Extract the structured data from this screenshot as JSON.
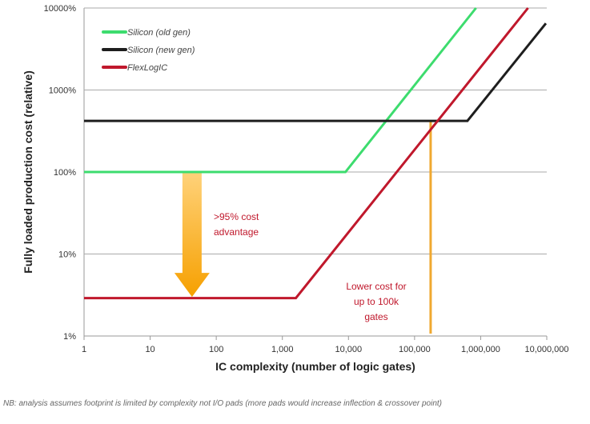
{
  "chart_data": {
    "type": "line",
    "xlabel": "IC complexity (number of logic gates)",
    "ylabel": "Fully loaded production cost (relative)",
    "x_scale": "log",
    "y_scale": "log",
    "xlim": [
      1,
      10000000
    ],
    "ylim": [
      1,
      10000
    ],
    "grid": true,
    "x_ticks": [
      1,
      10,
      100,
      1000,
      10000,
      100000,
      1000000,
      10000000
    ],
    "x_tick_labels": [
      "1",
      "10",
      "100",
      "1,000",
      "10,000",
      "100,000",
      "1,000,000",
      "10,000,000"
    ],
    "y_ticks": [
      1,
      10,
      100,
      1000,
      10000
    ],
    "y_tick_labels": [
      "1%",
      "10%",
      "100%",
      "1000%",
      "10000%"
    ],
    "legend_position": "top-left",
    "series": [
      {
        "name": "Silicon (old gen)",
        "color": "#3ddc6e",
        "points": [
          [
            1,
            100
          ],
          [
            9000,
            100
          ],
          [
            850000,
            10000
          ]
        ]
      },
      {
        "name": "Silicon (new gen)",
        "color": "#1e1e1e",
        "points": [
          [
            1,
            420
          ],
          [
            630000,
            420
          ],
          [
            9700000,
            6500
          ]
        ]
      },
      {
        "name": "FlexLogIC",
        "color": "#c0182c",
        "points": [
          [
            1,
            2.9
          ],
          [
            1600,
            2.9
          ],
          [
            5200000,
            10000
          ]
        ]
      }
    ],
    "annotations": [
      {
        "text_lines": [
          ">95% cost",
          "advantage"
        ],
        "color": "#c0182c"
      },
      {
        "text_lines": [
          "Lower cost for",
          "up to 100k",
          "gates"
        ],
        "color": "#c0182c"
      }
    ],
    "arrow": {
      "x": 43,
      "from_y": 100,
      "to_y": 3,
      "color": "#f6a623"
    },
    "crossover_line": {
      "x": 175000,
      "from_y": 420,
      "to_y": 1.07,
      "color": "#f0a830"
    }
  },
  "footnote": "NB: analysis assumes footprint is limited by complexity not I/O pads (more pads would increase inflection & crossover point)"
}
